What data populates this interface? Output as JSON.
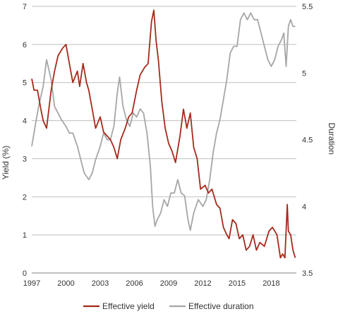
{
  "chart_data": {
    "type": "line",
    "x_ticks": [
      "1997",
      "2000",
      "2003",
      "2006",
      "2009",
      "2012",
      "2015",
      "2018"
    ],
    "xlim": [
      1997,
      2020.2
    ],
    "y_left": {
      "label": "Yield (%)",
      "ticks": [
        "0",
        "1",
        "2",
        "3",
        "4",
        "5",
        "6",
        "7"
      ],
      "lim": [
        0,
        7
      ]
    },
    "y_right": {
      "label": "Duration",
      "ticks": [
        "3.5",
        "4",
        "4.5",
        "5",
        "5.5"
      ],
      "lim": [
        3.5,
        5.5
      ]
    },
    "grid": true,
    "legend": "bottom",
    "series": [
      {
        "name": "Effective yield",
        "axis": "left",
        "color": "#a52a1a",
        "points": [
          [
            1997.0,
            5.1
          ],
          [
            1997.2,
            4.8
          ],
          [
            1997.5,
            4.8
          ],
          [
            1997.8,
            4.3
          ],
          [
            1998.0,
            4.0
          ],
          [
            1998.3,
            3.8
          ],
          [
            1998.7,
            4.8
          ],
          [
            1999.0,
            5.3
          ],
          [
            1999.3,
            5.7
          ],
          [
            1999.7,
            5.9
          ],
          [
            2000.0,
            6.0
          ],
          [
            2000.3,
            5.5
          ],
          [
            2000.6,
            5.0
          ],
          [
            2001.0,
            5.3
          ],
          [
            2001.2,
            4.9
          ],
          [
            2001.5,
            5.5
          ],
          [
            2001.8,
            5.0
          ],
          [
            2002.0,
            4.8
          ],
          [
            2002.3,
            4.3
          ],
          [
            2002.6,
            3.8
          ],
          [
            2003.0,
            4.1
          ],
          [
            2003.3,
            3.7
          ],
          [
            2003.6,
            3.6
          ],
          [
            2003.9,
            3.5
          ],
          [
            2004.2,
            3.3
          ],
          [
            2004.5,
            3.0
          ],
          [
            2004.8,
            3.5
          ],
          [
            2005.2,
            3.8
          ],
          [
            2005.5,
            4.1
          ],
          [
            2005.8,
            4.2
          ],
          [
            2006.2,
            4.8
          ],
          [
            2006.5,
            5.2
          ],
          [
            2006.9,
            5.4
          ],
          [
            2007.2,
            5.5
          ],
          [
            2007.5,
            6.6
          ],
          [
            2007.7,
            6.9
          ],
          [
            2007.9,
            6.1
          ],
          [
            2008.1,
            5.6
          ],
          [
            2008.4,
            4.5
          ],
          [
            2008.7,
            3.8
          ],
          [
            2009.0,
            3.4
          ],
          [
            2009.3,
            3.2
          ],
          [
            2009.6,
            2.9
          ],
          [
            2010.0,
            3.6
          ],
          [
            2010.3,
            4.3
          ],
          [
            2010.6,
            3.8
          ],
          [
            2010.9,
            4.2
          ],
          [
            2011.2,
            3.3
          ],
          [
            2011.5,
            3.0
          ],
          [
            2011.8,
            2.2
          ],
          [
            2012.2,
            2.3
          ],
          [
            2012.5,
            2.1
          ],
          [
            2012.8,
            2.2
          ],
          [
            2013.2,
            1.8
          ],
          [
            2013.5,
            1.7
          ],
          [
            2013.8,
            1.2
          ],
          [
            2014.1,
            1.0
          ],
          [
            2014.3,
            0.9
          ],
          [
            2014.6,
            1.4
          ],
          [
            2014.9,
            1.3
          ],
          [
            2015.2,
            0.9
          ],
          [
            2015.5,
            1.0
          ],
          [
            2015.8,
            0.6
          ],
          [
            2016.1,
            0.7
          ],
          [
            2016.4,
            1.0
          ],
          [
            2016.7,
            0.6
          ],
          [
            2017.0,
            0.8
          ],
          [
            2017.4,
            0.7
          ],
          [
            2017.8,
            1.1
          ],
          [
            2018.1,
            1.2
          ],
          [
            2018.5,
            1.0
          ],
          [
            2018.8,
            0.4
          ],
          [
            2019.0,
            0.5
          ],
          [
            2019.2,
            0.4
          ],
          [
            2019.4,
            1.8
          ],
          [
            2019.5,
            1.1
          ],
          [
            2019.7,
            1.0
          ],
          [
            2019.9,
            0.6
          ],
          [
            2020.1,
            0.4
          ]
        ]
      },
      {
        "name": "Effective duration",
        "axis": "right",
        "color": "#a6a6a6",
        "points": [
          [
            1997.0,
            4.45
          ],
          [
            1997.3,
            4.6
          ],
          [
            1997.6,
            4.75
          ],
          [
            1998.0,
            4.9
          ],
          [
            1998.3,
            5.1
          ],
          [
            1998.7,
            4.95
          ],
          [
            1999.0,
            4.75
          ],
          [
            1999.3,
            4.7
          ],
          [
            1999.6,
            4.65
          ],
          [
            2000.0,
            4.6
          ],
          [
            2000.3,
            4.55
          ],
          [
            2000.6,
            4.55
          ],
          [
            2001.0,
            4.45
          ],
          [
            2001.3,
            4.35
          ],
          [
            2001.6,
            4.25
          ],
          [
            2002.0,
            4.2
          ],
          [
            2002.3,
            4.25
          ],
          [
            2002.6,
            4.35
          ],
          [
            2003.0,
            4.45
          ],
          [
            2003.3,
            4.55
          ],
          [
            2003.6,
            4.5
          ],
          [
            2003.9,
            4.5
          ],
          [
            2004.2,
            4.6
          ],
          [
            2004.5,
            4.85
          ],
          [
            2004.7,
            4.97
          ],
          [
            2005.0,
            4.75
          ],
          [
            2005.3,
            4.65
          ],
          [
            2005.6,
            4.6
          ],
          [
            2005.9,
            4.7
          ],
          [
            2006.2,
            4.67
          ],
          [
            2006.5,
            4.73
          ],
          [
            2006.8,
            4.7
          ],
          [
            2007.1,
            4.55
          ],
          [
            2007.4,
            4.3
          ],
          [
            2007.6,
            4.0
          ],
          [
            2007.8,
            3.85
          ],
          [
            2008.0,
            3.9
          ],
          [
            2008.3,
            3.95
          ],
          [
            2008.6,
            4.05
          ],
          [
            2008.9,
            4.0
          ],
          [
            2009.2,
            4.1
          ],
          [
            2009.5,
            4.1
          ],
          [
            2009.8,
            4.2
          ],
          [
            2010.1,
            4.1
          ],
          [
            2010.4,
            4.08
          ],
          [
            2010.7,
            3.9
          ],
          [
            2010.9,
            3.82
          ],
          [
            2011.2,
            3.95
          ],
          [
            2011.6,
            4.05
          ],
          [
            2012.0,
            4.0
          ],
          [
            2012.3,
            4.05
          ],
          [
            2012.6,
            4.2
          ],
          [
            2012.9,
            4.4
          ],
          [
            2013.2,
            4.55
          ],
          [
            2013.5,
            4.65
          ],
          [
            2013.8,
            4.8
          ],
          [
            2014.1,
            4.95
          ],
          [
            2014.4,
            5.15
          ],
          [
            2014.7,
            5.2
          ],
          [
            2015.0,
            5.2
          ],
          [
            2015.3,
            5.4
          ],
          [
            2015.6,
            5.45
          ],
          [
            2015.9,
            5.4
          ],
          [
            2016.2,
            5.45
          ],
          [
            2016.5,
            5.4
          ],
          [
            2016.8,
            5.4
          ],
          [
            2017.1,
            5.3
          ],
          [
            2017.4,
            5.2
          ],
          [
            2017.7,
            5.1
          ],
          [
            2018.0,
            5.05
          ],
          [
            2018.3,
            5.1
          ],
          [
            2018.6,
            5.2
          ],
          [
            2018.9,
            5.25
          ],
          [
            2019.1,
            5.3
          ],
          [
            2019.3,
            5.05
          ],
          [
            2019.5,
            5.35
          ],
          [
            2019.7,
            5.4
          ],
          [
            2019.9,
            5.35
          ],
          [
            2020.1,
            5.35
          ]
        ]
      }
    ]
  }
}
